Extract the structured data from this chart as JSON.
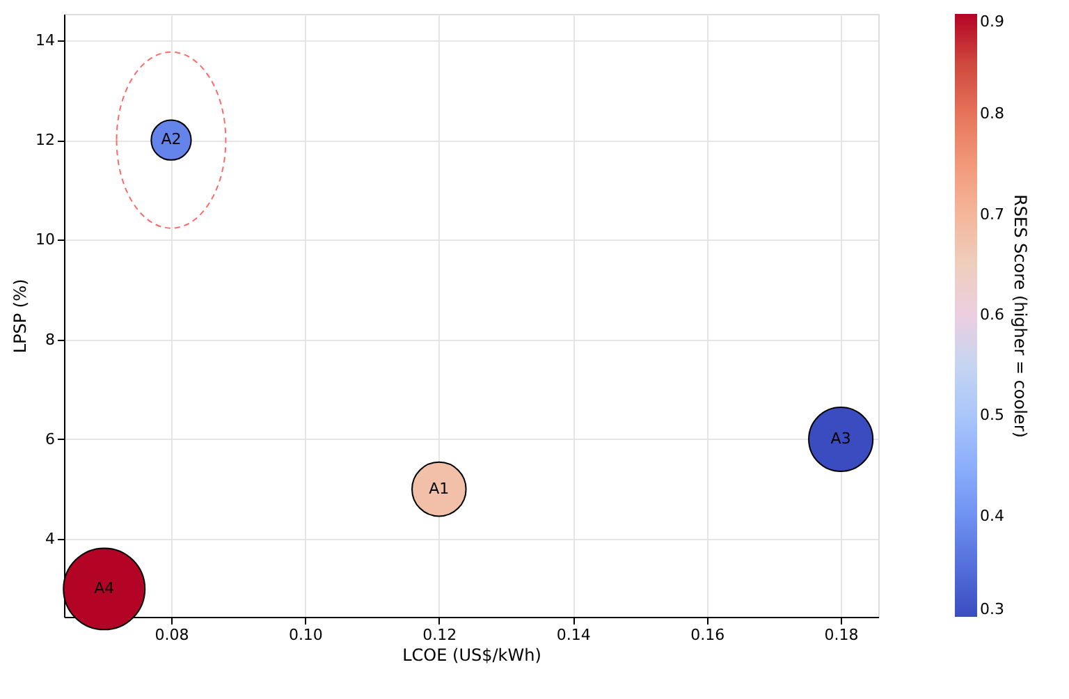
{
  "chart_data": {
    "type": "bubble",
    "xlabel": "LCOE (US$/kWh)",
    "ylabel": "LPSP (%)",
    "clabel": "RSES Score (higher = cooler)",
    "x": [
      0.12,
      0.08,
      0.18,
      0.07
    ],
    "values": [
      5,
      12,
      6,
      3
    ],
    "sizes": [
      0.44,
      0.24,
      0.62,
      1
    ],
    "cvalues": [
      0.68,
      0.38,
      0.3,
      0.9
    ],
    "value_labels": [
      "A1",
      "A2",
      "A3",
      "A4"
    ],
    "clim": [
      0.3,
      0.9
    ],
    "cticks": [
      0.3,
      0.4,
      0.5,
      0.6,
      0.7,
      0.8,
      0.9
    ],
    "xlim": [
      0.064,
      0.1856
    ],
    "xticks": [
      {
        "value": 0.08,
        "label": "0.08"
      },
      {
        "value": 0.1,
        "label": "0.10"
      },
      {
        "value": 0.12,
        "label": "0.12"
      },
      {
        "value": 0.14,
        "label": "0.14"
      },
      {
        "value": 0.16,
        "label": "0.16"
      },
      {
        "value": 0.18,
        "label": "0.18"
      }
    ],
    "ylim": [
      2.44,
      14.53
    ],
    "yticks": [
      4,
      6,
      8,
      10,
      12,
      14
    ],
    "grid": true
  }
}
